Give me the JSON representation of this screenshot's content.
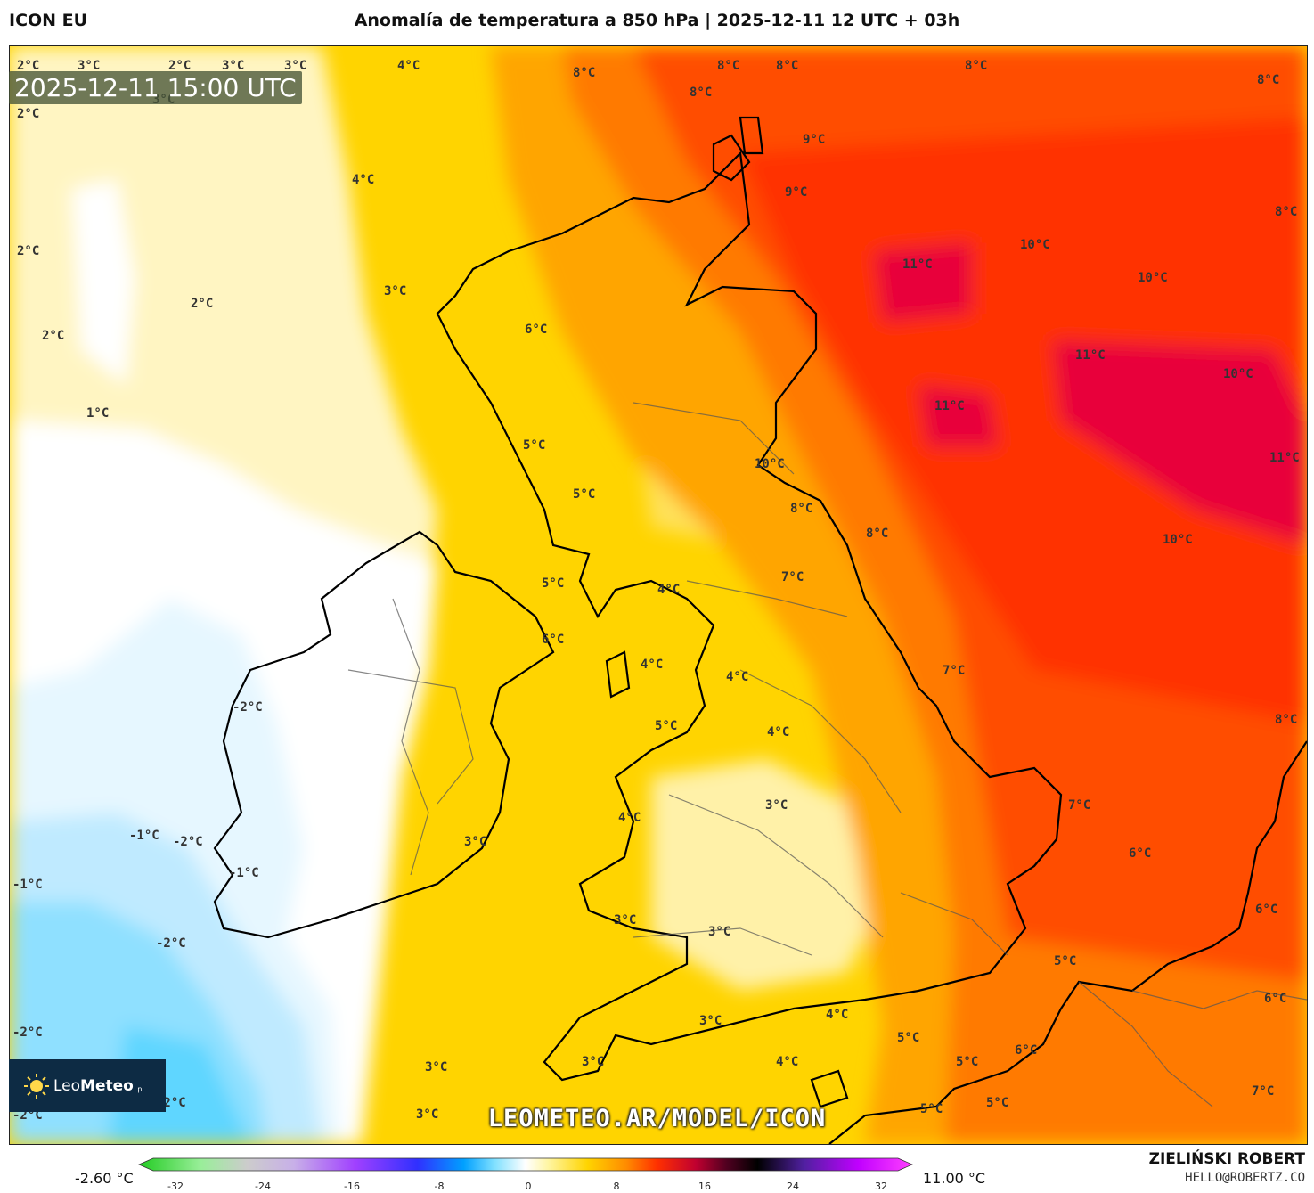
{
  "header": {
    "model": "ICON EU",
    "title": "Anomalía de temperatura a 850 hPa | 2025-12-11 12 UTC + 03h"
  },
  "timestamp": "2025-12-11 15:00 UTC",
  "logo": {
    "prefix": "Leo",
    "brand": "Meteo",
    "suffix": ".pl"
  },
  "watermark": "LEOMETEO.AR/MODEL/ICON",
  "colorbar": {
    "min_label": "-2.60 °C",
    "max_label": "11.00 °C",
    "ticks": [
      "-32",
      "-24",
      "-16",
      "-8",
      "0",
      "8",
      "16",
      "24",
      "32"
    ]
  },
  "credit": {
    "name": "ZIELIŃSKI ROBERT",
    "email": "HELLO@ROBERTZ.CO"
  },
  "colors": {
    "white": "#ffffff",
    "pale_yellow": "#fff5c2",
    "yellow": "#ffd400",
    "orange": "#ffa500",
    "dark_orange": "#ff7a00",
    "red": "#ff3300",
    "crimson": "#e8003a",
    "light_blue": "#bfeaff",
    "blue": "#5fd6ff"
  },
  "labels": [
    {
      "t": "2°C"
    },
    {
      "t": "3°C"
    },
    {
      "t": "2°C"
    },
    {
      "t": "3°C"
    },
    {
      "t": "3°C"
    },
    {
      "t": "4°C"
    },
    {
      "t": "8°C"
    },
    {
      "t": "8°C"
    },
    {
      "t": "8°C"
    },
    {
      "t": "8°C"
    },
    {
      "t": "8°C"
    },
    {
      "t": "8°C"
    },
    {
      "t": "2°C"
    },
    {
      "t": "3°C"
    },
    {
      "t": "9°C"
    },
    {
      "t": "9°C"
    },
    {
      "t": "4°C"
    },
    {
      "t": "8°C"
    },
    {
      "t": "2°C"
    },
    {
      "t": "10°C"
    },
    {
      "t": "11°C"
    },
    {
      "t": "10°C"
    },
    {
      "t": "3°C"
    },
    {
      "t": "2°C"
    },
    {
      "t": "2°C"
    },
    {
      "t": "6°C"
    },
    {
      "t": "11°C"
    },
    {
      "t": "10°C"
    },
    {
      "t": "11°C"
    },
    {
      "t": "1°C"
    },
    {
      "t": "5°C"
    },
    {
      "t": "10°C"
    },
    {
      "t": "11°C"
    },
    {
      "t": "5°C"
    },
    {
      "t": "8°C"
    },
    {
      "t": "8°C"
    },
    {
      "t": "10°C"
    },
    {
      "t": "5°C"
    },
    {
      "t": "7°C"
    },
    {
      "t": "4°C"
    },
    {
      "t": "6°C"
    },
    {
      "t": "4°C"
    },
    {
      "t": "7°C"
    },
    {
      "t": "4°C"
    },
    {
      "t": "-2°C"
    },
    {
      "t": "5°C"
    },
    {
      "t": "4°C"
    },
    {
      "t": "8°C"
    },
    {
      "t": "3°C"
    },
    {
      "t": "7°C"
    },
    {
      "t": "4°C"
    },
    {
      "t": "-1°C"
    },
    {
      "t": "-2°C"
    },
    {
      "t": "3°C"
    },
    {
      "t": "-1°C"
    },
    {
      "t": "6°C"
    },
    {
      "t": "-1°C"
    },
    {
      "t": "6°C"
    },
    {
      "t": "3°C"
    },
    {
      "t": "3°C"
    },
    {
      "t": "-2°C"
    },
    {
      "t": "5°C"
    },
    {
      "t": "6°C"
    },
    {
      "t": "3°C"
    },
    {
      "t": "4°C"
    },
    {
      "t": "-2°C"
    },
    {
      "t": "5°C"
    },
    {
      "t": "6°C"
    },
    {
      "t": "3°C"
    },
    {
      "t": "3°C"
    },
    {
      "t": "4°C"
    },
    {
      "t": "5°C"
    },
    {
      "t": "5°C"
    },
    {
      "t": "7°C"
    },
    {
      "t": "-2°C"
    },
    {
      "t": "3°C"
    },
    {
      "t": "5°C"
    },
    {
      "t": "-2°C"
    }
  ]
}
